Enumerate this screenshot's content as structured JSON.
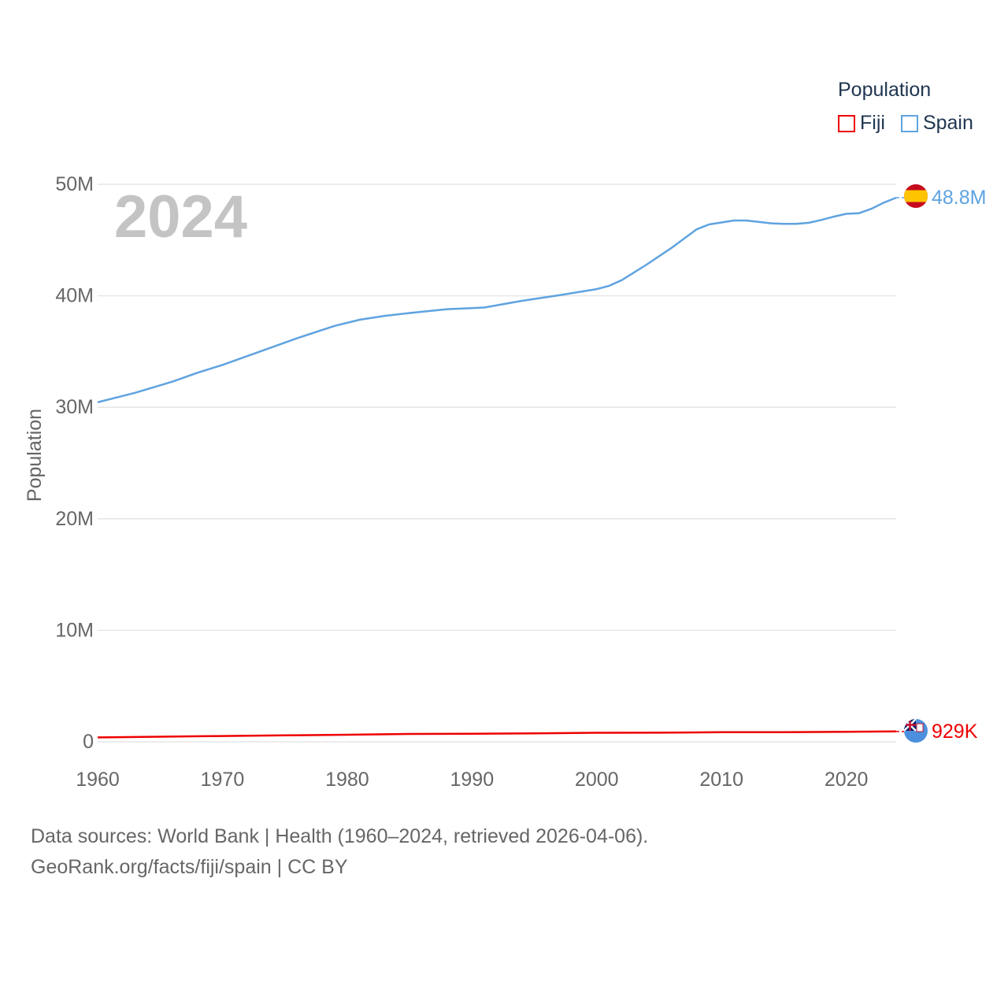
{
  "legend": {
    "title": "Population",
    "items": [
      {
        "label": "Fiji",
        "color": "#ee0000"
      },
      {
        "label": "Spain",
        "color": "#5fa3e0"
      }
    ]
  },
  "footer": {
    "line1": "Data sources: World Bank | Health (1960–2024, retrieved 2026-04-06).",
    "line2": "GeoRank.org/facts/fiji/spain | CC BY"
  },
  "chart_data": {
    "type": "line",
    "title": "",
    "year_label": "2024",
    "xlabel": "",
    "ylabel": "Population",
    "xlim": [
      1960,
      2024
    ],
    "ylim": [
      0,
      50000000
    ],
    "grid": true,
    "x_ticks": [
      1960,
      1970,
      1980,
      1990,
      2000,
      2010,
      2020
    ],
    "y_ticks": [
      {
        "value": 0,
        "label": "0"
      },
      {
        "value": 10000000,
        "label": "10M"
      },
      {
        "value": 20000000,
        "label": "20M"
      },
      {
        "value": 30000000,
        "label": "30M"
      },
      {
        "value": 40000000,
        "label": "40M"
      },
      {
        "value": 50000000,
        "label": "50M"
      }
    ],
    "series": [
      {
        "name": "Spain",
        "color": "#5fa3e0",
        "end_label": "48.8M",
        "x": [
          1960,
          1963,
          1966,
          1968,
          1970,
          1973,
          1976,
          1979,
          1981,
          1983,
          1985,
          1988,
          1990,
          1991,
          1994,
          1997,
          2000,
          2001,
          2002,
          2004,
          2006,
          2008,
          2009,
          2011,
          2012,
          2014,
          2015,
          2016,
          2017,
          2018,
          2019,
          2020,
          2021,
          2022,
          2023,
          2024
        ],
        "values": [
          30450000,
          31300000,
          32300000,
          33100000,
          33800000,
          35000000,
          36200000,
          37300000,
          37850000,
          38200000,
          38450000,
          38800000,
          38900000,
          38950000,
          39550000,
          40050000,
          40600000,
          40900000,
          41400000,
          42800000,
          44300000,
          45950000,
          46400000,
          46750000,
          46750000,
          46500000,
          46450000,
          46450000,
          46550000,
          46800000,
          47100000,
          47350000,
          47400000,
          47800000,
          48350000,
          48800000
        ]
      },
      {
        "name": "Fiji",
        "color": "#ee0000",
        "end_label": "929K",
        "x": [
          1960,
          1965,
          1970,
          1975,
          1980,
          1985,
          1990,
          1995,
          2000,
          2005,
          2010,
          2015,
          2020,
          2024
        ],
        "values": [
          393000,
          460000,
          520000,
          577000,
          634000,
          704000,
          724000,
          765000,
          811000,
          822000,
          859000,
          869000,
          898000,
          929000
        ]
      }
    ]
  }
}
